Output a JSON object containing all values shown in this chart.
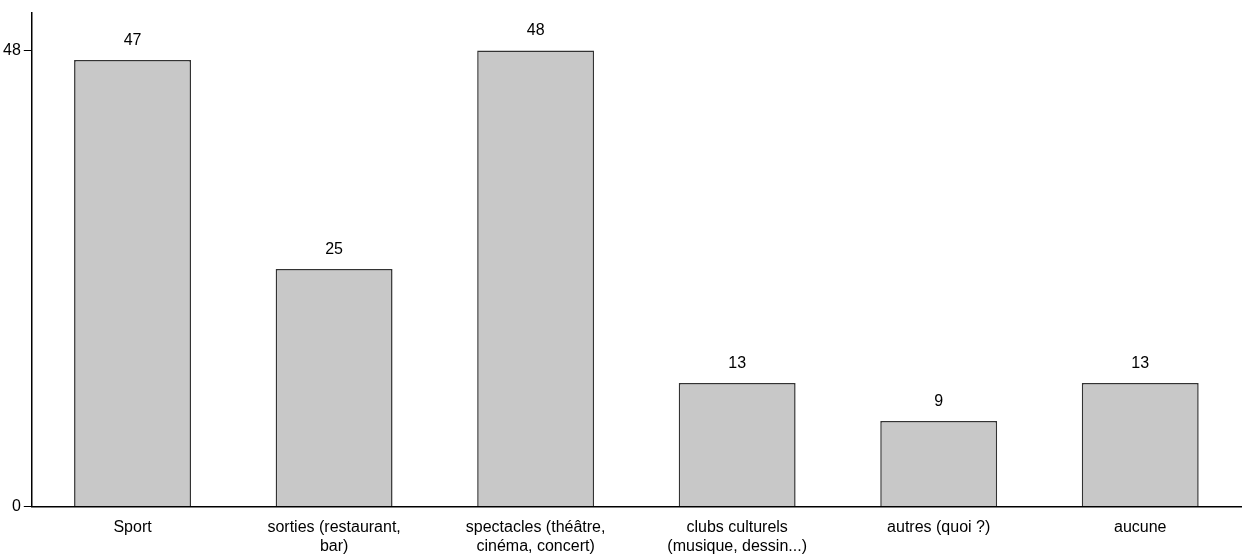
{
  "chart_data": {
    "type": "bar",
    "categories": [
      "Sport",
      "sorties (restaurant, bar)",
      "spectacles (théâtre, cinéma, concert)",
      "clubs culturels (musique, dessin...)",
      "autres (quoi ?)",
      "aucune"
    ],
    "values": [
      47,
      25,
      48,
      13,
      9,
      13
    ],
    "color": "#c8c8c8",
    "ylim": [
      0,
      52
    ],
    "yticks": [
      0,
      48
    ],
    "grid": false,
    "data_labels": true
  }
}
